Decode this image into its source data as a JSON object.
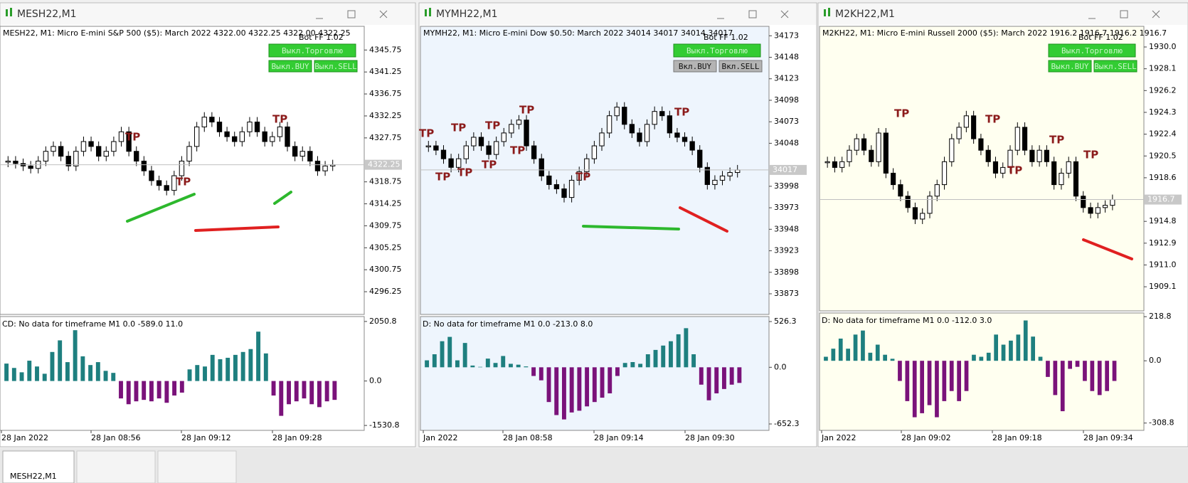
{
  "windows": [
    {
      "title": "MESH22,M1",
      "header": "MESH22, M1:  Micro E-mini S&P 500 ($5): March 2022  4322.00 4322.25 4322.00 4322.25",
      "bot": "Bot FF 1.02",
      "buttons": [
        {
          "label": "Выкл.Торговлю",
          "state": "on"
        },
        {
          "label": "Выкл.BUY",
          "state": "on"
        },
        {
          "label": "Выкл.SELL",
          "state": "on"
        }
      ],
      "background": "#ffffff",
      "price_range": [
        4291.6,
        4350.6
      ],
      "price_ticks": [
        4345.75,
        4341.25,
        4336.75,
        4332.25,
        4327.75,
        4318.75,
        4314.25,
        4309.75,
        4305.25,
        4300.75,
        4296.25
      ],
      "current_price": 4322.25,
      "closes": [
        4323,
        4322.5,
        4322,
        4321.5,
        4323,
        4325,
        4326,
        4324,
        4322,
        4325,
        4327,
        4326,
        4324,
        4325,
        4327,
        4329,
        4325,
        4323,
        4321,
        4319,
        4318,
        4317,
        4320,
        4323,
        4326,
        4330,
        4332,
        4331,
        4329,
        4328,
        4327,
        4329,
        4331,
        4329,
        4327,
        4328,
        4330,
        4326,
        4324,
        4325,
        4323,
        4321,
        4322,
        4322.25
      ],
      "tp_labels": [
        "TP",
        "TP",
        "TP"
      ],
      "indicator_title": "CD: No data for timeframe M1 0.0 -589.0 11.0",
      "indicator_range": [
        -1700,
        2220
      ],
      "indicator_ticks": [
        2050.8,
        {
          "value": 0,
          "label": "0.0"
        },
        -1530.8
      ],
      "indicator_values": [
        600,
        450,
        300,
        700,
        500,
        250,
        1000,
        1400,
        650,
        1750,
        850,
        550,
        650,
        350,
        280,
        -600,
        -800,
        -700,
        -650,
        -700,
        -600,
        -750,
        -500,
        -400,
        400,
        550,
        500,
        900,
        750,
        800,
        900,
        1000,
        1100,
        1700,
        950,
        -500,
        -1200,
        -800,
        -700,
        -600,
        -800,
        -900,
        -700,
        -650
      ],
      "time_labels": [
        "28 Jan 2022",
        "28 Jan 08:56",
        "28 Jan 09:12",
        "28 Jan 09:28"
      ]
    },
    {
      "title": "MYMH22,M1",
      "header": "MYMH22, M1:  Micro E-mini Dow $0.50: March 2022  34014 34017 34014 34017",
      "bot": "Bot FF 1.02",
      "buttons": [
        {
          "label": "Выкл.Торговлю",
          "state": "on"
        },
        {
          "label": "Вкл.BUY",
          "state": "off"
        },
        {
          "label": "Вкл.SELL",
          "state": "off"
        }
      ],
      "background": "#eef5fd",
      "price_range": [
        33849,
        34184
      ],
      "price_ticks": [
        34173,
        34148,
        34123,
        34098,
        34073,
        34048,
        33998,
        33973,
        33948,
        33923,
        33898,
        33873
      ],
      "current_price": 34017,
      "closes": [
        34045,
        34040,
        34030,
        34020,
        34030,
        34045,
        34055,
        34045,
        34035,
        34050,
        34060,
        34070,
        34075,
        34045,
        34030,
        34010,
        34000,
        33995,
        33985,
        34005,
        34015,
        34030,
        34045,
        34060,
        34080,
        34090,
        34070,
        34060,
        34050,
        34070,
        34085,
        34080,
        34060,
        34055,
        34050,
        34040,
        34020,
        34000,
        34005,
        34010,
        34014,
        34017
      ],
      "tp_labels": [
        "TP",
        "TP",
        "TP",
        "TP",
        "TP",
        "TP",
        "TP",
        "TP",
        "TP",
        "TP"
      ],
      "indicator_title": "D: No data for timeframe M1 0.0 -213.0 8.0",
      "indicator_range": [
        -726,
        584
      ],
      "indicator_ticks": [
        526.3,
        {
          "value": 0,
          "label": "0.0"
        },
        -652.3
      ],
      "indicator_values": [
        80,
        150,
        300,
        350,
        80,
        280,
        20,
        5,
        100,
        50,
        130,
        40,
        30,
        10,
        -100,
        -150,
        -400,
        -550,
        -600,
        -520,
        -500,
        -450,
        -400,
        -350,
        -300,
        -100,
        50,
        60,
        40,
        150,
        200,
        250,
        300,
        380,
        450,
        150,
        -200,
        -380,
        -300,
        -250,
        -200,
        -180
      ],
      "time_labels": [
        "Jan 2022",
        "28 Jan 08:58",
        "28 Jan 09:14",
        "28 Jan 09:30"
      ]
    },
    {
      "title": "M2KH22,M1",
      "header": "M2KH22, M1:  Micro E-mini Russell 2000 ($5): March 2022  1916.2 1916.7 1916.2 1916.7",
      "bot": "Bot FF 1.02",
      "buttons": [
        {
          "label": "Выкл.Торговлю",
          "state": "on"
        },
        {
          "label": "Выкл.BUY",
          "state": "on"
        },
        {
          "label": "Выкл.SELL",
          "state": "on"
        }
      ],
      "background": "#fffff0",
      "price_range": [
        1907.0,
        1931.8
      ],
      "price_ticks": [
        {
          "value": 1930,
          "label": "1930.0"
        },
        1928.1,
        1926.2,
        1924.3,
        1922.4,
        1920.5,
        1918.6,
        1914.8,
        1912.9,
        {
          "value": 1911,
          "label": "1911.0"
        },
        1909.1
      ],
      "current_price": 1916.7,
      "closes": [
        1920,
        1919.5,
        1920,
        1921,
        1922,
        1921,
        1920,
        1922.5,
        1919,
        1918,
        1917,
        1916,
        1915,
        1915.5,
        1917,
        1918,
        1920,
        1922,
        1923,
        1924,
        1922,
        1921,
        1920,
        1919,
        1919.5,
        1921,
        1923,
        1921,
        1920,
        1921,
        1920,
        1918,
        1919,
        1920,
        1917,
        1916,
        1915.5,
        1916,
        1916.2,
        1916.7
      ],
      "tp_labels": [
        "TP",
        "TP",
        "TP",
        "TP",
        "TP"
      ],
      "indicator_title": "D: No data for timeframe M1 0.0 -112.0 3.0",
      "indicator_range": [
        -345,
        237
      ],
      "indicator_ticks": [
        218.8,
        {
          "value": 0,
          "label": "0.0"
        },
        -308.8
      ],
      "indicator_values": [
        20,
        60,
        110,
        60,
        130,
        150,
        40,
        80,
        30,
        10,
        -100,
        -200,
        -280,
        -260,
        -220,
        -280,
        -200,
        -150,
        -200,
        -150,
        30,
        20,
        40,
        130,
        80,
        100,
        130,
        200,
        120,
        20,
        -80,
        -170,
        -250,
        -40,
        -30,
        -100,
        -150,
        -170,
        -150,
        -100
      ],
      "time_labels": [
        "Jan 2022",
        "28 Jan 09:02",
        "28 Jan 09:18",
        "28 Jan 09:34"
      ]
    }
  ],
  "tab": "MESH22,M1"
}
